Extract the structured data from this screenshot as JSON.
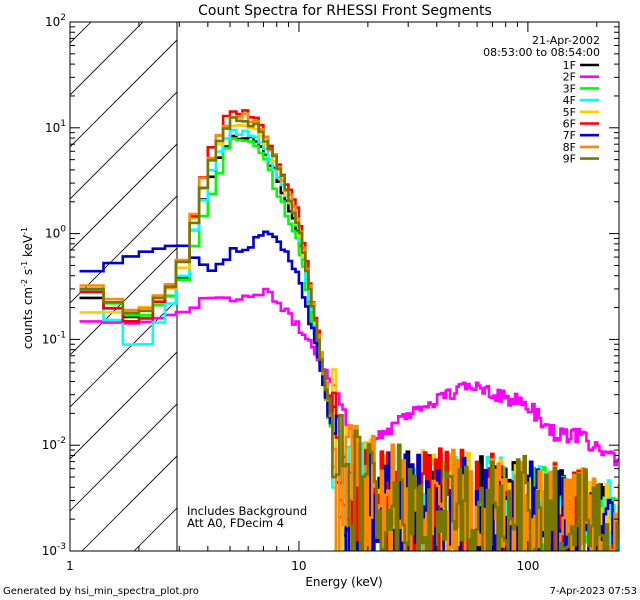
{
  "chart_data": {
    "type": "line",
    "title": "Count Spectra for RHESSI Front Segments",
    "xlabel": "Energy (keV)",
    "ylabel_base": "counts cm",
    "ylabel_exp1": "-2",
    "ylabel_mid": " s",
    "ylabel_exp2": "-1",
    "ylabel_end": " keV",
    "ylabel_exp3": "-1",
    "xscale": "log",
    "yscale": "log",
    "xlim": [
      1,
      250
    ],
    "ylim": [
      0.001,
      100
    ],
    "xticks": [
      {
        "value": 1,
        "label": "1"
      },
      {
        "value": 10,
        "label": "10"
      },
      {
        "value": 100,
        "label": "100"
      }
    ],
    "yticks": [
      {
        "value": 100,
        "base": "10",
        "exp": "2"
      },
      {
        "value": 10,
        "base": "10",
        "exp": "1"
      },
      {
        "value": 1,
        "base": "10",
        "exp": "0"
      },
      {
        "value": 0.1,
        "base": "10",
        "exp": "-1"
      },
      {
        "value": 0.01,
        "base": "10",
        "exp": "-2"
      },
      {
        "value": 0.001,
        "base": "10",
        "exp": "-3"
      }
    ],
    "excluded_region_kev": [
      1,
      3
    ],
    "date": "21-Apr-2002",
    "time_range": "08:53:00 to 08:54:00",
    "annotation_lines": [
      "Includes Background",
      "Att A0, FDecim 4"
    ],
    "series": [
      {
        "name": "1F",
        "color": "#000000",
        "base": [
          [
            1.1,
            0.28
          ],
          [
            2.0,
            0.15
          ],
          [
            3.0,
            0.3
          ],
          [
            4.0,
            3.0
          ],
          [
            5.0,
            8.0
          ],
          [
            6.0,
            8.5
          ],
          [
            7.0,
            6.5
          ],
          [
            8.0,
            3.5
          ],
          [
            10.0,
            1.0
          ],
          [
            12.0,
            0.1
          ],
          [
            13.5,
            0.022
          ],
          [
            16.0,
            0.004
          ],
          [
            22.0,
            0.0025
          ],
          [
            40.0,
            0.0022
          ],
          [
            80.0,
            0.002
          ],
          [
            150.0,
            0.0018
          ],
          [
            250.0,
            0.0011
          ]
        ]
      },
      {
        "name": "2F",
        "color": "#ff00ff",
        "base": [
          [
            1.1,
            0.15
          ],
          [
            2.0,
            0.14
          ],
          [
            3.0,
            0.18
          ],
          [
            4.0,
            0.25
          ],
          [
            6.0,
            0.25
          ],
          [
            7.5,
            0.28
          ],
          [
            9.0,
            0.17
          ],
          [
            11.0,
            0.1
          ],
          [
            14.0,
            0.04
          ],
          [
            17.0,
            0.014
          ],
          [
            19.0,
            0.007
          ],
          [
            22.0,
            0.012
          ],
          [
            30.0,
            0.02
          ],
          [
            45.0,
            0.03
          ],
          [
            60.0,
            0.038
          ],
          [
            80.0,
            0.028
          ],
          [
            100.0,
            0.024
          ],
          [
            130.0,
            0.013
          ],
          [
            170.0,
            0.012
          ],
          [
            210.0,
            0.009
          ],
          [
            250.0,
            0.0065
          ]
        ]
      },
      {
        "name": "3F",
        "color": "#00ff00",
        "base": [
          [
            1.1,
            0.36
          ],
          [
            2.0,
            0.15
          ],
          [
            3.0,
            0.3
          ],
          [
            4.0,
            1.8
          ],
          [
            5.0,
            8.0
          ],
          [
            6.0,
            8.0
          ],
          [
            7.0,
            5.5
          ],
          [
            8.0,
            2.5
          ],
          [
            10.0,
            0.8
          ],
          [
            12.0,
            0.09
          ],
          [
            13.5,
            0.018
          ],
          [
            16.0,
            0.004
          ],
          [
            22.0,
            0.0022
          ],
          [
            40.0,
            0.002
          ],
          [
            80.0,
            0.0018
          ],
          [
            150.0,
            0.0015
          ],
          [
            250.0,
            0.0011
          ]
        ]
      },
      {
        "name": "4F",
        "color": "#00ffff",
        "base": [
          [
            1.1,
            0.42
          ],
          [
            2.0,
            0.07
          ],
          [
            3.0,
            0.3
          ],
          [
            4.0,
            3.2
          ],
          [
            5.0,
            9.0
          ],
          [
            6.0,
            9.0
          ],
          [
            7.0,
            7.0
          ],
          [
            8.0,
            3.8
          ],
          [
            10.0,
            1.1
          ],
          [
            12.0,
            0.1
          ],
          [
            13.5,
            0.022
          ],
          [
            16.0,
            0.004
          ],
          [
            22.0,
            0.0025
          ],
          [
            40.0,
            0.0022
          ],
          [
            80.0,
            0.002
          ],
          [
            150.0,
            0.0017
          ],
          [
            250.0,
            0.0012
          ]
        ]
      },
      {
        "name": "5F",
        "color": "#ffcc00",
        "base": [
          [
            1.1,
            0.18
          ],
          [
            2.0,
            0.18
          ],
          [
            3.0,
            0.35
          ],
          [
            4.0,
            4.0
          ],
          [
            5.0,
            11.0
          ],
          [
            6.0,
            11.0
          ],
          [
            7.0,
            8.0
          ],
          [
            8.0,
            4.5
          ],
          [
            10.0,
            1.2
          ],
          [
            12.0,
            0.12
          ],
          [
            13.5,
            0.025
          ],
          [
            16.0,
            0.005
          ],
          [
            22.0,
            0.003
          ],
          [
            40.0,
            0.0025
          ],
          [
            80.0,
            0.0022
          ],
          [
            150.0,
            0.0018
          ],
          [
            250.0,
            0.0012
          ]
        ]
      },
      {
        "name": "6F",
        "color": "#ff0000",
        "base": [
          [
            1.1,
            0.34
          ],
          [
            2.0,
            0.13
          ],
          [
            3.0,
            0.4
          ],
          [
            4.0,
            5.0
          ],
          [
            5.0,
            14.0
          ],
          [
            6.0,
            14.0
          ],
          [
            7.0,
            10.0
          ],
          [
            8.0,
            5.0
          ],
          [
            10.0,
            1.5
          ],
          [
            12.0,
            0.13
          ],
          [
            13.5,
            0.028
          ],
          [
            16.0,
            0.005
          ],
          [
            22.0,
            0.003
          ],
          [
            40.0,
            0.0025
          ],
          [
            80.0,
            0.0022
          ],
          [
            150.0,
            0.0018
          ],
          [
            250.0,
            0.0012
          ]
        ]
      },
      {
        "name": "7F",
        "color": "#0000cc",
        "base": [
          [
            1.1,
            0.4
          ],
          [
            2.0,
            0.65
          ],
          [
            3.0,
            0.8
          ],
          [
            4.0,
            0.45
          ],
          [
            5.0,
            0.65
          ],
          [
            6.0,
            0.75
          ],
          [
            7.0,
            1.0
          ],
          [
            8.0,
            0.9
          ],
          [
            9.0,
            0.6
          ],
          [
            10.0,
            0.4
          ],
          [
            12.0,
            0.08
          ],
          [
            13.5,
            0.02
          ],
          [
            16.0,
            0.004
          ],
          [
            22.0,
            0.0025
          ],
          [
            40.0,
            0.002
          ],
          [
            80.0,
            0.002
          ],
          [
            150.0,
            0.0016
          ],
          [
            250.0,
            0.0011
          ]
        ]
      },
      {
        "name": "8F",
        "color": "#ff8800",
        "base": [
          [
            1.1,
            0.38
          ],
          [
            2.0,
            0.17
          ],
          [
            3.0,
            0.4
          ],
          [
            4.0,
            4.5
          ],
          [
            5.0,
            13.0
          ],
          [
            6.0,
            13.0
          ],
          [
            7.0,
            9.0
          ],
          [
            8.0,
            4.8
          ],
          [
            10.0,
            1.3
          ],
          [
            12.0,
            0.12
          ],
          [
            13.5,
            0.026
          ],
          [
            16.0,
            0.005
          ],
          [
            22.0,
            0.003
          ],
          [
            40.0,
            0.0025
          ],
          [
            80.0,
            0.0022
          ],
          [
            150.0,
            0.0018
          ],
          [
            250.0,
            0.0012
          ]
        ]
      },
      {
        "name": "9F",
        "color": "#777700",
        "base": [
          [
            1.1,
            0.35
          ],
          [
            2.0,
            0.16
          ],
          [
            3.0,
            0.38
          ],
          [
            4.0,
            4.2
          ],
          [
            5.0,
            12.0
          ],
          [
            6.0,
            12.0
          ],
          [
            7.0,
            8.5
          ],
          [
            8.0,
            4.6
          ],
          [
            10.0,
            1.25
          ],
          [
            12.0,
            0.12
          ],
          [
            13.5,
            0.025
          ],
          [
            16.0,
            0.005
          ],
          [
            22.0,
            0.003
          ],
          [
            40.0,
            0.0025
          ],
          [
            80.0,
            0.0022
          ],
          [
            150.0,
            0.0018
          ],
          [
            250.0,
            0.0012
          ]
        ]
      }
    ]
  },
  "footer": {
    "left": "Generated by hsi_min_spectra_plot.pro",
    "right": "7-Apr-2023 07:53"
  }
}
